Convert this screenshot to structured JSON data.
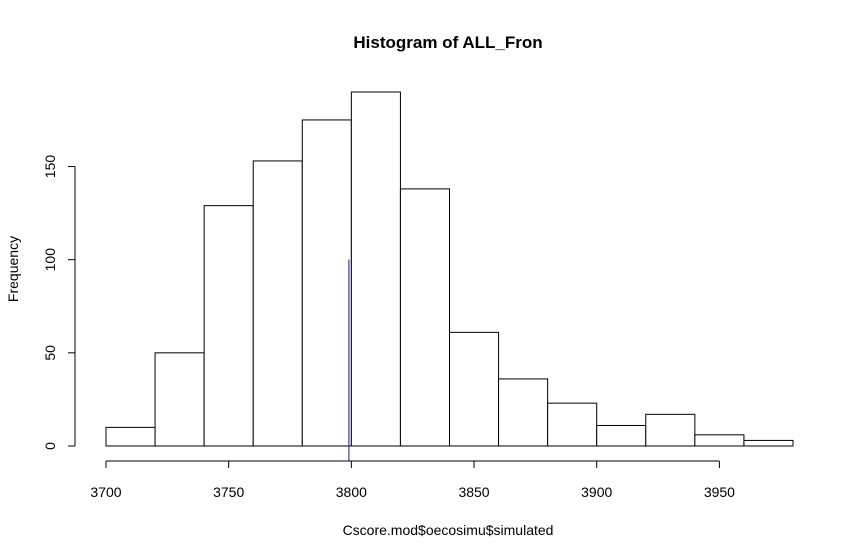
{
  "chart_data": {
    "type": "histogram",
    "title": "Histogram of ALL_Fron",
    "xlabel": "Cscore.mod$oecosimu$simulated",
    "ylabel": "Frequency",
    "bin_edges": [
      3700,
      3720,
      3740,
      3760,
      3780,
      3800,
      3820,
      3840,
      3860,
      3880,
      3900,
      3920,
      3940,
      3960,
      3980
    ],
    "counts": [
      10,
      50,
      129,
      153,
      175,
      190,
      138,
      61,
      36,
      23,
      11,
      17,
      6,
      3
    ],
    "x_ticks": [
      3700,
      3750,
      3800,
      3850,
      3900,
      3950
    ],
    "y_ticks": [
      0,
      50,
      100,
      150
    ],
    "xlim": [
      3700,
      3980
    ],
    "ylim": [
      0,
      190
    ],
    "reference_line": {
      "x": 3799,
      "y_top": 100,
      "color": "#1a1a8c"
    }
  }
}
